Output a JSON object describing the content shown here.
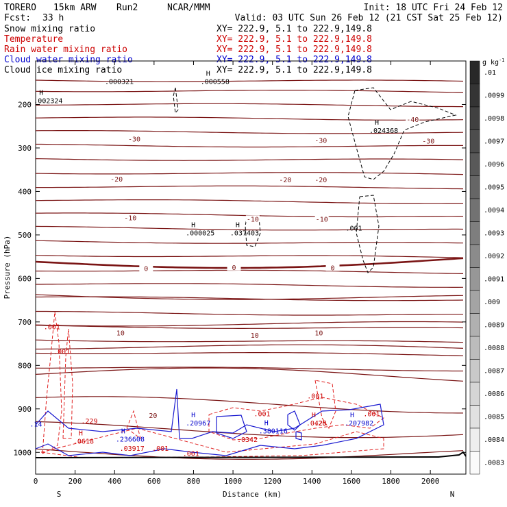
{
  "header": {
    "model": "TORERO",
    "resolution": "15km ARW",
    "run": "Run2",
    "org": "NCAR/MMM",
    "init": "Init: 18 UTC Fri 24 Feb 12",
    "fcst_label": "Fcst:",
    "fcst_value": "33 h",
    "valid": "Valid: 03 UTC Sun 26 Feb 12 (21 CST Sat 25 Feb 12)"
  },
  "fields": [
    {
      "name": "Snow mixing ratio",
      "xy": "",
      "color": "#000000"
    },
    {
      "name": "Temperature",
      "xy": "XY= 222.9,   5.1 to 222.9,149.8",
      "color": "#cc0000"
    },
    {
      "name": "Rain water mixing ratio",
      "xy": "XY= 222.9,   5.1 to 222.9,149.8",
      "color": "#cc0000"
    },
    {
      "name": "Cloud water mixing ratio",
      "xy": "XY= 222.9,   5.1 to 222.9,149.8",
      "color": "#0000cc"
    },
    {
      "name": "Cloud ice mixing ratio",
      "xy": "XY= 222.9,   5.1 to 222.9,149.8",
      "color": "#000000"
    }
  ],
  "snow_xy": "XY= 222.9,   5.1 to 222.9,149.8",
  "colors": {
    "temperature": "#7a1414",
    "rain": "#e02020",
    "cloud_water": "#1a1ad0",
    "cloud_ice": "#000000"
  },
  "chart_data": {
    "type": "cross-section",
    "xlabel": "Distance (km)",
    "ylabel": "Pressure (hPa)",
    "x_range": [
      0,
      2180
    ],
    "y_range": [
      1050,
      100
    ],
    "x_ticks": [
      0,
      200,
      400,
      600,
      800,
      1000,
      1200,
      1400,
      1600,
      1800,
      2000
    ],
    "y_ticks": [
      200,
      300,
      400,
      500,
      600,
      700,
      800,
      900,
      1000
    ],
    "left_end_label": "S",
    "right_end_label": "N",
    "colorbar": {
      "unit": "g kg",
      "unit_exp": "-1",
      "labels": [
        ".01",
        ".0099",
        ".0098",
        ".0097",
        ".0096",
        ".0095",
        ".0094",
        ".0093",
        ".0092",
        ".0091",
        ".009",
        ".0089",
        ".0088",
        ".0087",
        ".0086",
        ".0085",
        ".0084",
        ".0083"
      ]
    },
    "temperature_labels": [
      {
        "text": "-30",
        "x": 500,
        "p": 282
      },
      {
        "text": "-30",
        "x": 1445,
        "p": 285
      },
      {
        "text": "-30",
        "x": 1990,
        "p": 287
      },
      {
        "text": "-20",
        "x": 410,
        "p": 374
      },
      {
        "text": "-20",
        "x": 1265,
        "p": 376
      },
      {
        "text": "-20",
        "x": 1445,
        "p": 376
      },
      {
        "text": "-10",
        "x": 480,
        "p": 463
      },
      {
        "text": "-10",
        "x": 1100,
        "p": 466
      },
      {
        "text": "-10",
        "x": 1450,
        "p": 466
      },
      {
        "text": "-40",
        "x": 1910,
        "p": 237
      },
      {
        "text": "0",
        "x": 560,
        "p": 580
      },
      {
        "text": "0",
        "x": 1005,
        "p": 577
      },
      {
        "text": "0",
        "x": 1505,
        "p": 578
      },
      {
        "text": "10",
        "x": 430,
        "p": 728
      },
      {
        "text": "10",
        "x": 1110,
        "p": 733
      },
      {
        "text": "10",
        "x": 1435,
        "p": 728
      },
      {
        "text": "20",
        "x": 595,
        "p": 918
      }
    ],
    "extrema_labels": [
      {
        "mark": "H",
        "value": ".002324",
        "x": 60,
        "p": 194,
        "color": "#000000"
      },
      {
        "mark": "",
        "value": ".000321",
        "x": 420,
        "p": 150,
        "color": "#000000"
      },
      {
        "mark": "H",
        "value": ".000558",
        "x": 905,
        "p": 150,
        "color": "#000000"
      },
      {
        "mark": "H",
        "value": ".024368",
        "x": 1760,
        "p": 262,
        "color": "#000000"
      },
      {
        "mark": "H",
        "value": ".000025",
        "x": 830,
        "p": 498,
        "color": "#000000"
      },
      {
        "mark": "H",
        "value": ".037403",
        "x": 1055,
        "p": 498,
        "color": "#000000"
      },
      {
        "mark": "",
        "value": ".001",
        "x": 1640,
        "p": 487,
        "color": "#000000"
      },
      {
        "mark": "",
        "value": ".001",
        "x": 110,
        "p": 714,
        "color": "#cc0000"
      },
      {
        "mark": "",
        "value": ".001",
        "x": 160,
        "p": 770,
        "color": "#cc0000"
      },
      {
        "mark": "",
        "value": ".001",
        "x": 1445,
        "p": 873,
        "color": "#cc0000"
      },
      {
        "mark": "",
        "value": ".001",
        "x": 1175,
        "p": 914,
        "color": "#cc0000"
      },
      {
        "mark": "",
        "value": ".001",
        "x": 1730,
        "p": 914,
        "color": "#cc0000"
      },
      {
        "mark": "H",
        "value": ".0425",
        "x": 1440,
        "p": 935,
        "color": "#cc0000"
      },
      {
        "mark": "",
        "value": ".0342",
        "x": 1090,
        "p": 973,
        "color": "#cc0000"
      },
      {
        "mark": "H",
        "value": ".0618",
        "x": 260,
        "p": 977,
        "color": "#cc0000"
      },
      {
        "mark": "",
        "value": ".03917",
        "x": 495,
        "p": 993,
        "color": "#cc0000"
      },
      {
        "mark": "",
        "value": ".001",
        "x": 660,
        "p": 993,
        "color": "#cc0000"
      },
      {
        "mark": "",
        "value": ".001",
        "x": 815,
        "p": 1005,
        "color": "#cc0000"
      },
      {
        "mark": "",
        "value": ".20",
        "x": 1480,
        "p": 935,
        "color": "#cc0000"
      },
      {
        "mark": "",
        "value": ".229",
        "x": 300,
        "p": 930,
        "color": "#cc0000"
      },
      {
        "mark": "",
        "value": ".14",
        "x": 40,
        "p": 937,
        "color": "#0000cc"
      },
      {
        "mark": "H",
        "value": ".236608",
        "x": 475,
        "p": 972,
        "color": "#0000cc"
      },
      {
        "mark": "H",
        "value": ".20967",
        "x": 830,
        "p": 935,
        "color": "#0000cc"
      },
      {
        "mark": "H",
        "value": ".380116",
        "x": 1200,
        "p": 953,
        "color": "#0000cc"
      },
      {
        "mark": "H",
        "value": ".207982",
        "x": 1635,
        "p": 935,
        "color": "#0000cc"
      }
    ]
  }
}
